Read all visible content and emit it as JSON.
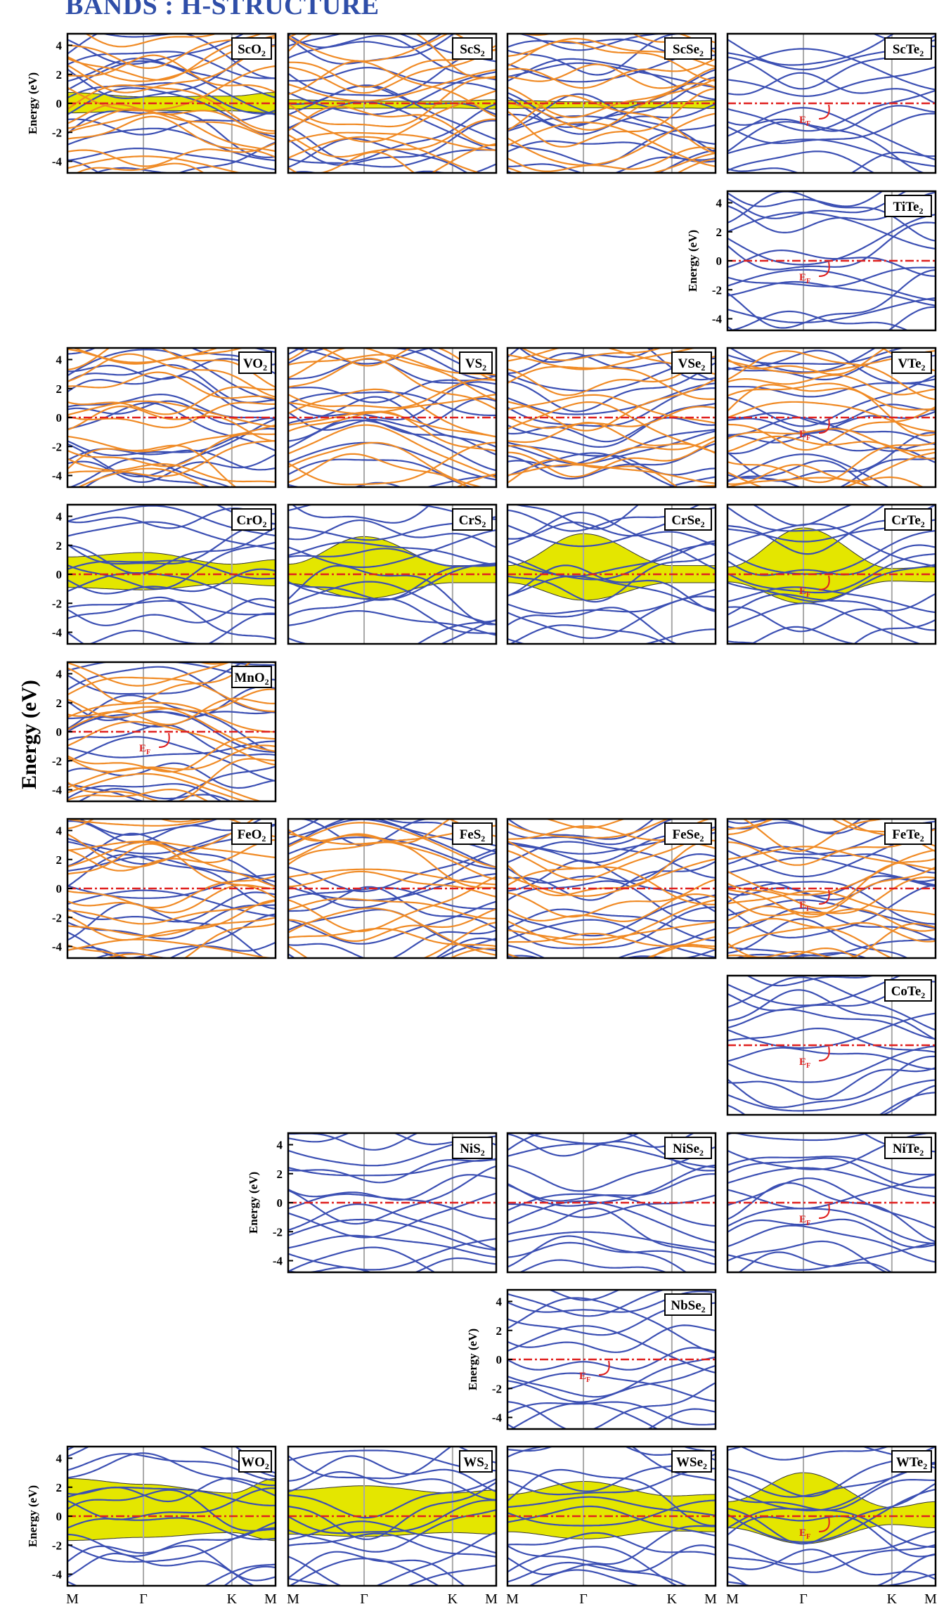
{
  "title": "BANDS : H-STRUCTURE",
  "ylabel": "Energy (eV)",
  "fermi_label": "E",
  "fermi_sub": "F",
  "colors": {
    "title": "#2f4ea8",
    "band_blue": "#3b4fb3",
    "band_orange": "#f08a24",
    "fermi": "#e0201f",
    "fill": "#e4e600",
    "kline": "#a8a8a8"
  },
  "chart_data": {
    "type": "line",
    "ylim": [
      -4.8,
      4.8
    ],
    "yticks": [
      4,
      2,
      0,
      -2,
      -4
    ],
    "kpath": [
      "M",
      "Γ",
      "K",
      "M"
    ],
    "panels": [
      {
        "name": "ScO",
        "sub": "2",
        "row": 0,
        "col": 0,
        "orange": true,
        "fill": [
          0.75,
          0.45,
          0.5,
          0.75
        ],
        "ef": false,
        "ylabel": true
      },
      {
        "name": "ScS",
        "sub": "2",
        "row": 0,
        "col": 1,
        "orange": true,
        "fill": [
          0.25,
          0.15,
          0.15,
          0.25
        ],
        "ef": false,
        "ylabel": false
      },
      {
        "name": "ScSe",
        "sub": "2",
        "row": 0,
        "col": 2,
        "orange": true,
        "fill": [
          0.2,
          0.1,
          0.1,
          0.2
        ],
        "ef": false,
        "ylabel": false
      },
      {
        "name": "ScTe",
        "sub": "2",
        "row": 0,
        "col": 3,
        "orange": false,
        "fill": null,
        "ef": true,
        "ylabel": false
      },
      {
        "name": "TiTe",
        "sub": "2",
        "row": 1,
        "col": 3,
        "orange": false,
        "fill": null,
        "ef": true,
        "ylabel": true
      },
      {
        "name": "VO",
        "sub": "2",
        "row": 2,
        "col": 0,
        "orange": true,
        "fill": null,
        "ef": false,
        "ylabel": false
      },
      {
        "name": "VS",
        "sub": "2",
        "row": 2,
        "col": 1,
        "orange": true,
        "fill": null,
        "ef": false,
        "ylabel": false
      },
      {
        "name": "VSe",
        "sub": "2",
        "row": 2,
        "col": 2,
        "orange": true,
        "fill": null,
        "ef": false,
        "ylabel": false
      },
      {
        "name": "VTe",
        "sub": "2",
        "row": 2,
        "col": 3,
        "orange": true,
        "fill": null,
        "ef": true,
        "ylabel": false
      },
      {
        "name": "CrO",
        "sub": "2",
        "row": 3,
        "col": 0,
        "orange": false,
        "fill": [
          1.2,
          1.5,
          0.7,
          1.0
        ],
        "ef": false,
        "ylabel": false
      },
      {
        "name": "CrS",
        "sub": "2",
        "row": 3,
        "col": 1,
        "orange": false,
        "fill": [
          0.7,
          2.6,
          0.6,
          0.6
        ],
        "ef": false,
        "ylabel": false
      },
      {
        "name": "CrSe",
        "sub": "2",
        "row": 3,
        "col": 2,
        "orange": false,
        "fill": [
          0.6,
          2.8,
          0.6,
          0.6
        ],
        "ef": false,
        "ylabel": false
      },
      {
        "name": "CrTe",
        "sub": "2",
        "row": 3,
        "col": 3,
        "orange": false,
        "fill": [
          0.5,
          3.2,
          0.4,
          0.5
        ],
        "ef": true,
        "ylabel": false
      },
      {
        "name": "MnO",
        "sub": "2",
        "row": 4,
        "col": 0,
        "orange": true,
        "fill": null,
        "ef": true,
        "ylabel": false
      },
      {
        "name": "FeO",
        "sub": "2",
        "row": 5,
        "col": 0,
        "orange": true,
        "fill": null,
        "ef": false,
        "ylabel": false
      },
      {
        "name": "FeS",
        "sub": "2",
        "row": 5,
        "col": 1,
        "orange": true,
        "fill": null,
        "ef": false,
        "ylabel": false
      },
      {
        "name": "FeSe",
        "sub": "2",
        "row": 5,
        "col": 2,
        "orange": true,
        "fill": null,
        "ef": false,
        "ylabel": false
      },
      {
        "name": "FeTe",
        "sub": "2",
        "row": 5,
        "col": 3,
        "orange": true,
        "fill": null,
        "ef": true,
        "ylabel": false
      },
      {
        "name": "CoTe",
        "sub": "2",
        "row": 6,
        "col": 3,
        "orange": false,
        "fill": null,
        "ef": true,
        "ylabel": false
      },
      {
        "name": "NiS",
        "sub": "2",
        "row": 7,
        "col": 1,
        "orange": false,
        "fill": null,
        "ef": false,
        "ylabel": true
      },
      {
        "name": "NiSe",
        "sub": "2",
        "row": 7,
        "col": 2,
        "orange": false,
        "fill": null,
        "ef": false,
        "ylabel": false
      },
      {
        "name": "NiTe",
        "sub": "2",
        "row": 7,
        "col": 3,
        "orange": false,
        "fill": null,
        "ef": true,
        "ylabel": false
      },
      {
        "name": "NbSe",
        "sub": "2",
        "row": 8,
        "col": 2,
        "orange": false,
        "fill": null,
        "ef": true,
        "ylabel": true
      },
      {
        "name": "WO",
        "sub": "2",
        "row": 9,
        "col": 0,
        "orange": false,
        "fill": [
          2.6,
          2.2,
          1.6,
          2.6
        ],
        "ef": false,
        "ylabel": true
      },
      {
        "name": "WS",
        "sub": "2",
        "row": 9,
        "col": 1,
        "orange": false,
        "fill": [
          1.8,
          2.1,
          1.6,
          1.8
        ],
        "ef": false,
        "ylabel": false
      },
      {
        "name": "WSe",
        "sub": "2",
        "row": 9,
        "col": 2,
        "orange": false,
        "fill": [
          1.5,
          2.4,
          1.4,
          1.5
        ],
        "ef": false,
        "ylabel": false
      },
      {
        "name": "WTe",
        "sub": "2",
        "row": 9,
        "col": 3,
        "orange": false,
        "fill": [
          1.0,
          3.0,
          0.6,
          1.0
        ],
        "ef": true,
        "ylabel": false
      }
    ]
  }
}
